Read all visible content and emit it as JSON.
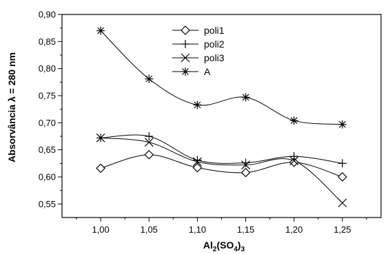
{
  "chart_data": {
    "type": "scatter",
    "xlabel": "Al2(SO4)3",
    "xlabel_parts": {
      "base1": "Al",
      "sub1": "2",
      "mid": "(SO",
      "sub2": "4",
      "tail": ")",
      "sub3": "3"
    },
    "ylabel": "Absorvância λ = 280 nm",
    "xlim": [
      0.96,
      1.29
    ],
    "ylim": [
      0.525,
      0.9
    ],
    "x_ticks": [
      1.0,
      1.05,
      1.1,
      1.15,
      1.2,
      1.25
    ],
    "x_tick_labels": [
      "1,00",
      "1,05",
      "1,10",
      "1,15",
      "1,20",
      "1,25"
    ],
    "y_ticks": [
      0.55,
      0.6,
      0.65,
      0.7,
      0.75,
      0.8,
      0.85,
      0.9
    ],
    "y_tick_labels": [
      "0,55",
      "0,60",
      "0,65",
      "0,70",
      "0,75",
      "0,80",
      "0,85",
      "0,90"
    ],
    "grid": false,
    "legend_position": "top-center",
    "series": [
      {
        "name": "poli1",
        "marker": "diamond",
        "x": [
          1.0,
          1.05,
          1.1,
          1.15,
          1.2,
          1.25
        ],
        "y": [
          0.616,
          0.641,
          0.617,
          0.608,
          0.627,
          0.6
        ]
      },
      {
        "name": "poli2",
        "marker": "plus",
        "x": [
          1.0,
          1.05,
          1.1,
          1.15,
          1.2,
          1.25
        ],
        "y": [
          0.672,
          0.675,
          0.631,
          0.626,
          0.638,
          0.625
        ]
      },
      {
        "name": "poli3",
        "marker": "cross",
        "x": [
          1.0,
          1.05,
          1.1,
          1.15,
          1.2,
          1.25
        ],
        "y": [
          0.672,
          0.664,
          0.628,
          0.622,
          0.63,
          0.552
        ]
      },
      {
        "name": "A",
        "marker": "asterisk",
        "x": [
          1.0,
          1.05,
          1.1,
          1.15,
          1.2,
          1.25
        ],
        "y": [
          0.87,
          0.781,
          0.733,
          0.747,
          0.704,
          0.697
        ]
      }
    ]
  }
}
